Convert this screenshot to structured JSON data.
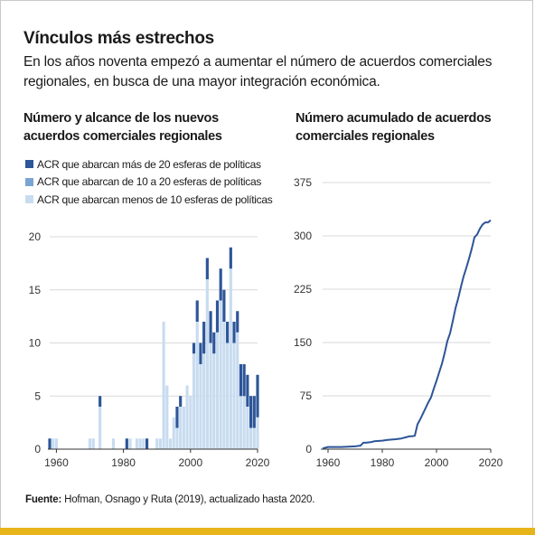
{
  "header": {
    "title": "Vínculos más estrechos",
    "subtitle": "En los años noventa empezó a aumentar el número de acuerdos comerciales regionales, en busca de una mayor integración económica."
  },
  "colors": {
    "dark": "#2d5598",
    "mid": "#7aa4d2",
    "light": "#c8dcf0",
    "line": "#2d5598",
    "grid": "#d9d9d9",
    "accent_bar": "#e7b51a"
  },
  "legend": {
    "items": [
      {
        "label": "ACR que abarcan más de 20 esferas de políticas",
        "color": "#2d5598"
      },
      {
        "label": "ACR que abarcan de 10 a 20 esferas de políticas",
        "color": "#7aa4d2"
      },
      {
        "label": "ACR que abarcan menos de 10 esferas de políticas",
        "color": "#c8dcf0"
      }
    ]
  },
  "source": {
    "label": "Fuente:",
    "text": "Hofman, Osnago y Ruta (2019), actualizado hasta 2020."
  },
  "chart_data": [
    {
      "type": "bar",
      "stacked": true,
      "title": "Número y alcance de los nuevos acuerdos comerciales regionales",
      "xlabel": "",
      "ylabel": "",
      "xlim": [
        1958,
        2020
      ],
      "ylim": [
        0,
        20
      ],
      "yticks": [
        0,
        5,
        10,
        15,
        20
      ],
      "xticks": [
        1960,
        1980,
        2000,
        2020
      ],
      "grid": true,
      "legend_position": "top-left",
      "categories": [
        1958,
        1959,
        1960,
        1961,
        1962,
        1963,
        1964,
        1965,
        1966,
        1967,
        1968,
        1969,
        1970,
        1971,
        1972,
        1973,
        1974,
        1975,
        1976,
        1977,
        1978,
        1979,
        1980,
        1981,
        1982,
        1983,
        1984,
        1985,
        1986,
        1987,
        1988,
        1989,
        1990,
        1991,
        1992,
        1993,
        1994,
        1995,
        1996,
        1997,
        1998,
        1999,
        2000,
        2001,
        2002,
        2003,
        2004,
        2005,
        2006,
        2007,
        2008,
        2009,
        2010,
        2011,
        2012,
        2013,
        2014,
        2015,
        2016,
        2017,
        2018,
        2019,
        2020
      ],
      "series": [
        {
          "name": "ACR que abarcan más de 20 esferas de políticas",
          "values": [
            1,
            0,
            0,
            0,
            0,
            0,
            0,
            0,
            0,
            0,
            0,
            0,
            0,
            0,
            0,
            1,
            0,
            0,
            0,
            0,
            0,
            0,
            0,
            1,
            0,
            0,
            0,
            0,
            0,
            1,
            0,
            0,
            0,
            0,
            0,
            0,
            0,
            0,
            2,
            1,
            0,
            0,
            0,
            1,
            2,
            2,
            3,
            2,
            3,
            2,
            3,
            3,
            3,
            2,
            2,
            2,
            2,
            3,
            3,
            3,
            3,
            3,
            4
          ]
        },
        {
          "name": "ACR que abarcan de 10 a 20 esferas de políticas",
          "values": [
            0,
            0,
            0,
            0,
            0,
            0,
            0,
            0,
            0,
            0,
            0,
            0,
            0,
            0,
            0,
            0,
            0,
            0,
            0,
            0,
            0,
            0,
            0,
            0,
            0,
            0,
            0,
            0,
            0,
            0,
            0,
            0,
            0,
            0,
            0,
            0,
            0,
            0,
            0,
            0,
            0,
            0,
            0,
            0,
            0,
            0,
            0,
            0,
            0,
            0,
            0,
            0,
            0,
            0,
            0,
            0,
            0,
            0,
            0,
            0,
            0,
            0,
            0
          ]
        },
        {
          "name": "ACR que abarcan menos de 10 esferas de políticas",
          "values": [
            0,
            1,
            1,
            0,
            0,
            0,
            0,
            0,
            0,
            0,
            0,
            0,
            1,
            1,
            0,
            4,
            0,
            0,
            0,
            1,
            0,
            0,
            0,
            0,
            1,
            0,
            1,
            1,
            1,
            0,
            0,
            0,
            1,
            1,
            12,
            6,
            1,
            3,
            2,
            4,
            4,
            6,
            5,
            9,
            12,
            8,
            9,
            16,
            10,
            9,
            11,
            14,
            12,
            10,
            17,
            10,
            11,
            5,
            5,
            4,
            2,
            2,
            3
          ]
        }
      ]
    },
    {
      "type": "line",
      "title": "Número acumulado de acuerdos comerciales regionales",
      "xlabel": "",
      "ylabel": "",
      "xlim": [
        1958,
        2020
      ],
      "ylim": [
        0,
        375
      ],
      "yticks": [
        0,
        75,
        150,
        225,
        300,
        375
      ],
      "xticks": [
        1960,
        1980,
        2000,
        2020
      ],
      "grid": true,
      "x": [
        1958,
        1960,
        1965,
        1970,
        1972,
        1973,
        1974,
        1976,
        1977,
        1980,
        1982,
        1985,
        1987,
        1989,
        1990,
        1991,
        1992,
        1993,
        1994,
        1995,
        1996,
        1997,
        1998,
        1999,
        2000,
        2001,
        2002,
        2003,
        2004,
        2005,
        2006,
        2007,
        2008,
        2009,
        2010,
        2011,
        2012,
        2013,
        2014,
        2015,
        2016,
        2017,
        2018,
        2019,
        2020
      ],
      "series": [
        {
          "name": "",
          "values": [
            1,
            3,
            3,
            4,
            5,
            9,
            9,
            10,
            11,
            12,
            13,
            14,
            15,
            17,
            18,
            18,
            19,
            35,
            42,
            50,
            58,
            66,
            73,
            85,
            96,
            108,
            120,
            135,
            152,
            163,
            180,
            198,
            212,
            228,
            243,
            255,
            268,
            282,
            298,
            302,
            310,
            316,
            319,
            319,
            322
          ]
        }
      ]
    }
  ]
}
